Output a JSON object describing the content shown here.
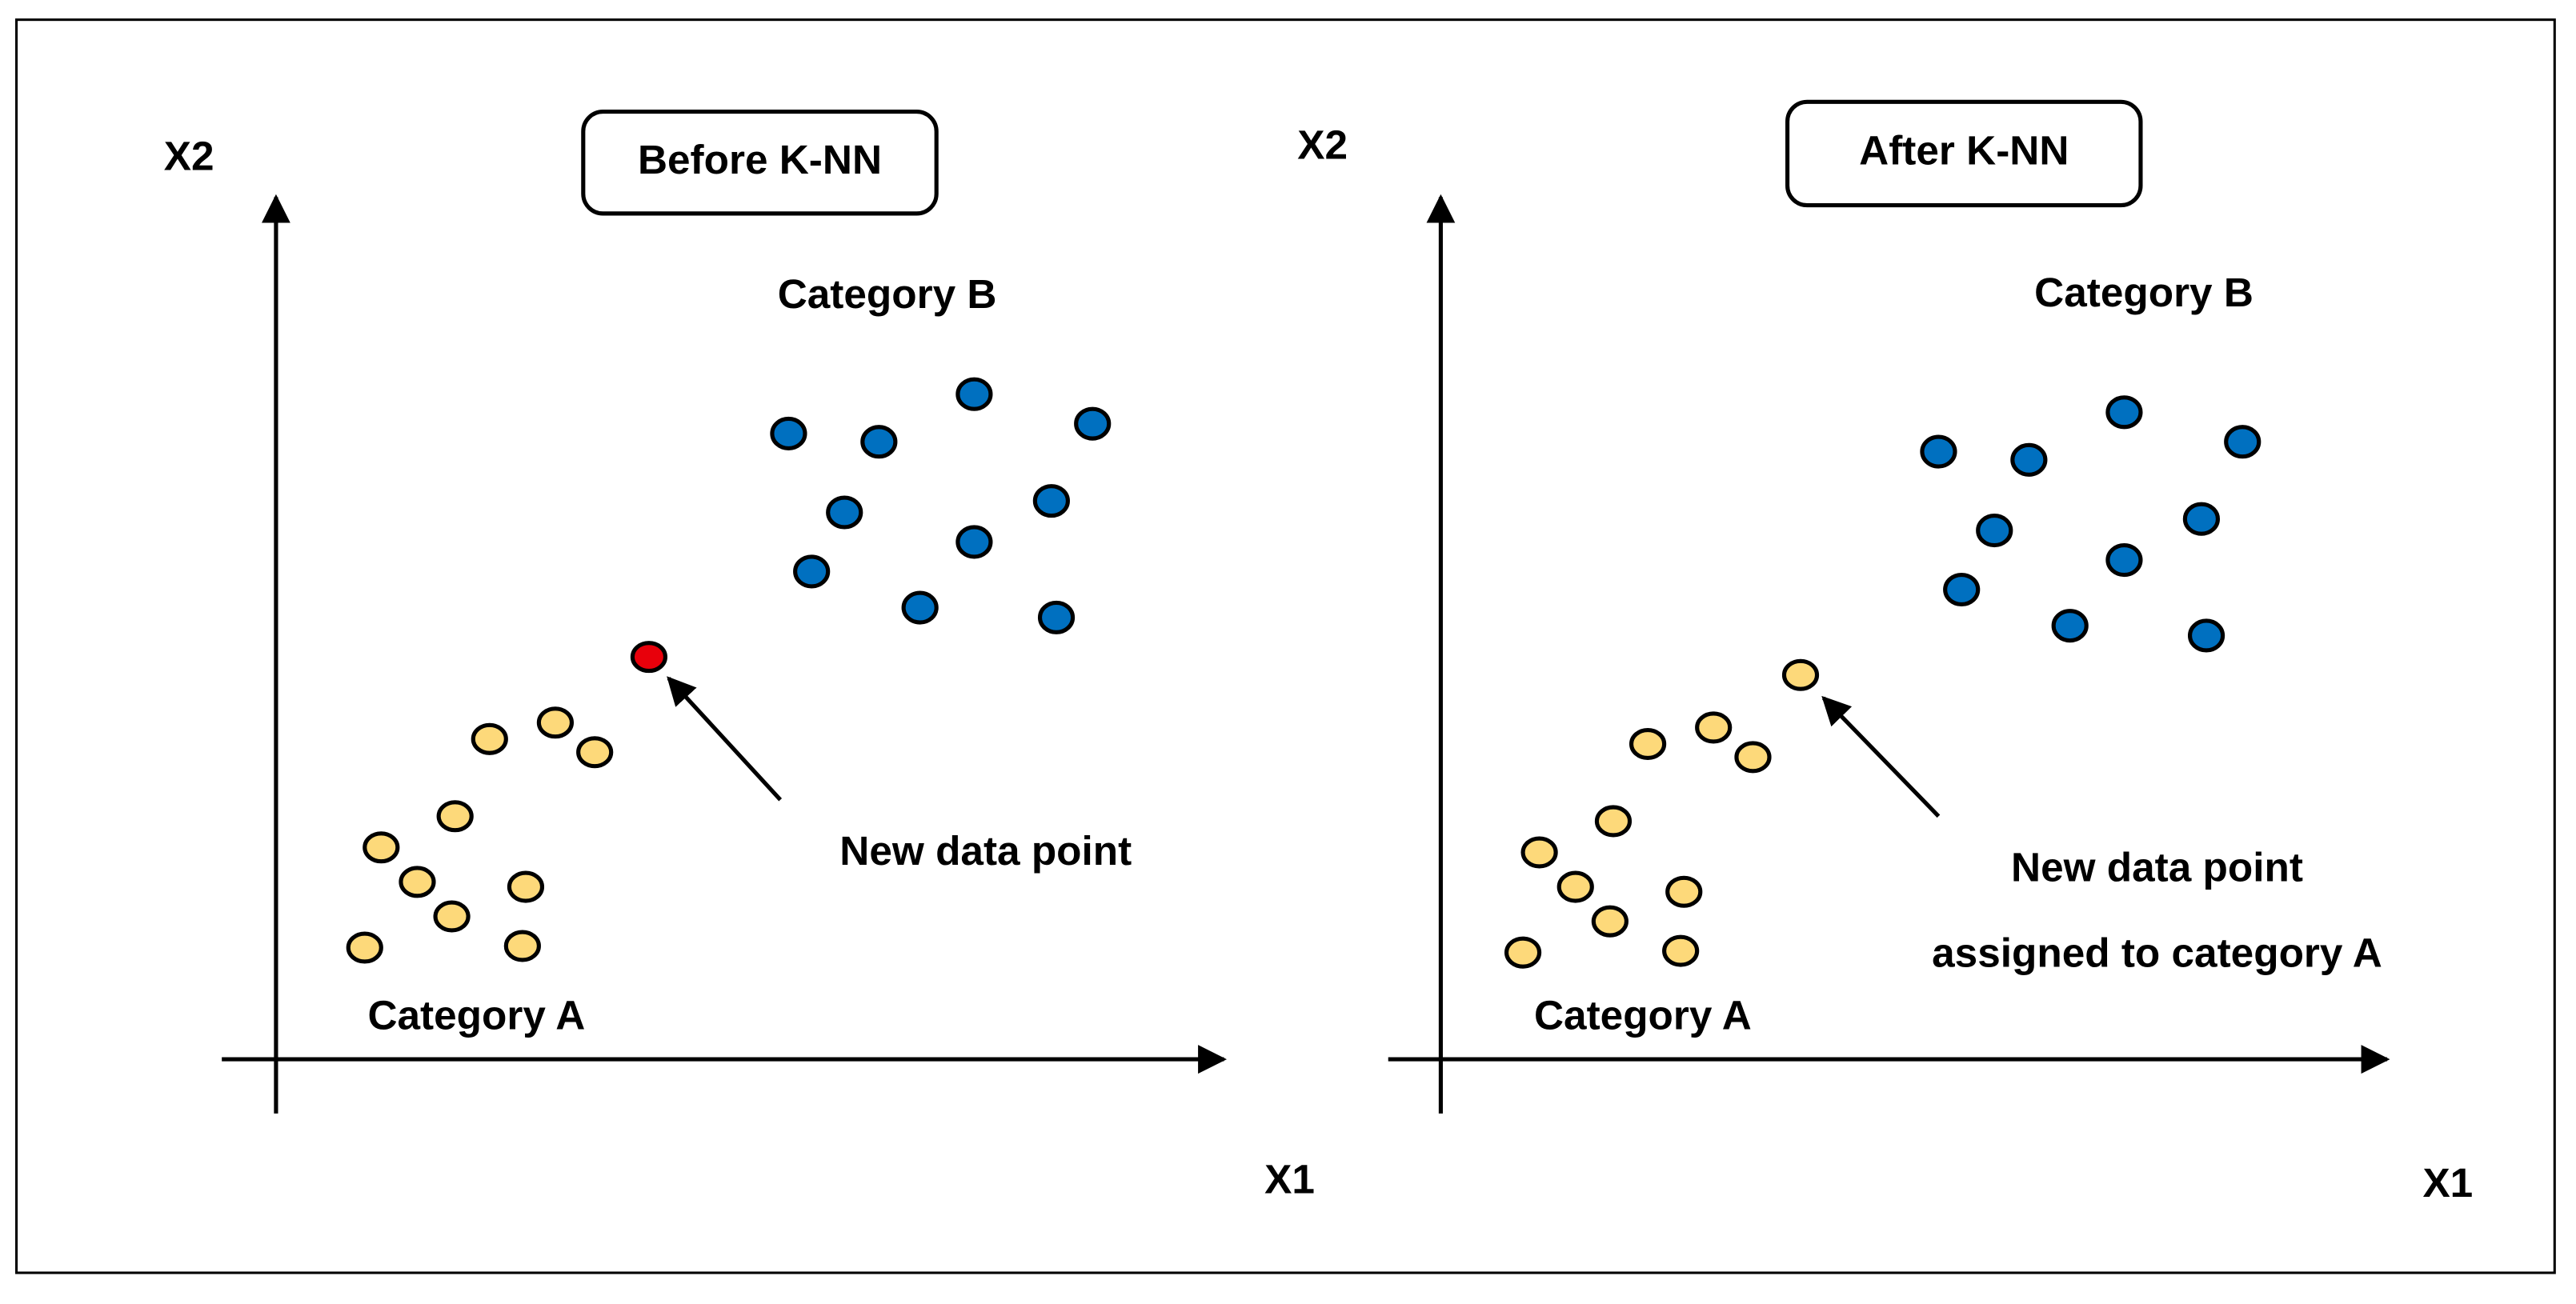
{
  "panels": [
    {
      "title": "Before K-NN",
      "y_label": "X2",
      "x_label": "X1",
      "category_b": "Category B",
      "category_a": "Category A",
      "annotation": [
        "New data point"
      ]
    },
    {
      "title": "After K-NN",
      "y_label": "X2",
      "x_label": "X1",
      "category_b": "Category B",
      "category_a": "Category A",
      "annotation": [
        "New data point",
        "assigned to category A"
      ]
    }
  ]
}
